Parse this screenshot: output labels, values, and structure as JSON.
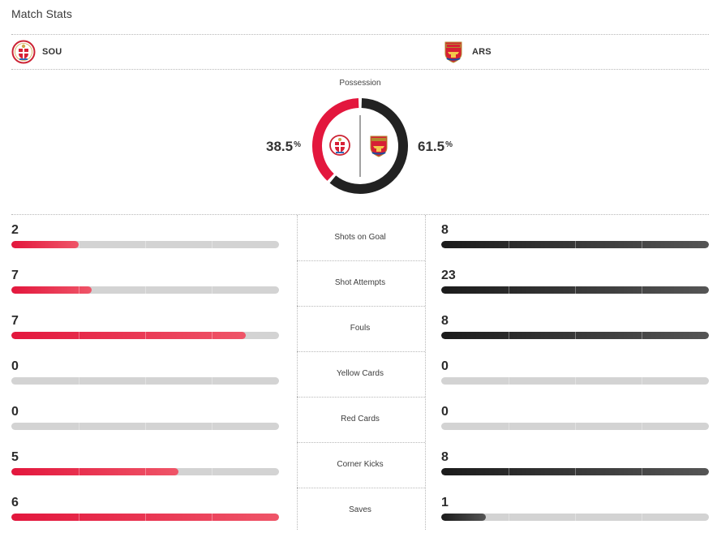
{
  "title": "Match Stats",
  "teams": {
    "home": {
      "abbr": "SOU",
      "color": "#e3173d"
    },
    "away": {
      "abbr": "ARS",
      "color": "#222222"
    }
  },
  "possession": {
    "label": "Possession",
    "home_value": "38.5",
    "away_value": "61.5",
    "unit": "%",
    "home_fraction": 0.385,
    "away_fraction": 0.615
  },
  "stats": [
    {
      "label": "Shots on Goal",
      "home": "2",
      "away": "8",
      "home_ratio": 0.25,
      "away_ratio": 1.0
    },
    {
      "label": "Shot Attempts",
      "home": "7",
      "away": "23",
      "home_ratio": 0.3,
      "away_ratio": 1.0
    },
    {
      "label": "Fouls",
      "home": "7",
      "away": "8",
      "home_ratio": 0.875,
      "away_ratio": 1.0
    },
    {
      "label": "Yellow Cards",
      "home": "0",
      "away": "0",
      "home_ratio": 0,
      "away_ratio": 0
    },
    {
      "label": "Red Cards",
      "home": "0",
      "away": "0",
      "home_ratio": 0,
      "away_ratio": 0
    },
    {
      "label": "Corner Kicks",
      "home": "5",
      "away": "8",
      "home_ratio": 0.625,
      "away_ratio": 1.0
    },
    {
      "label": "Saves",
      "home": "6",
      "away": "1",
      "home_ratio": 1.0,
      "away_ratio": 0.1667
    }
  ]
}
